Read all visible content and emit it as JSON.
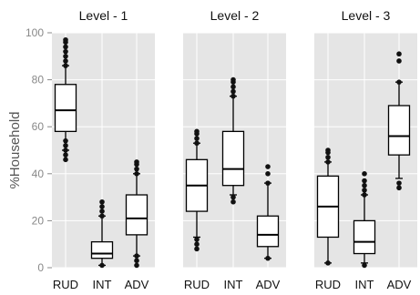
{
  "chart_data": {
    "type": "box",
    "ylabel": "%Household",
    "ylim": [
      0,
      100
    ],
    "yticks": [
      "0",
      "20",
      "40",
      "60",
      "80",
      "100"
    ],
    "grid": true,
    "panels": [
      {
        "title": "Level - 1",
        "categories": [
          "RUD",
          "INT",
          "ADV"
        ],
        "boxes": [
          {
            "q1": 58,
            "median": 67,
            "q3": 78,
            "whisker_low": 50,
            "whisker_high": 86,
            "outliers": [
              46,
              48,
              50,
              52,
              54,
              86,
              88,
              90,
              92,
              94,
              96,
              97
            ]
          },
          {
            "q1": 4,
            "median": 6,
            "q3": 11,
            "whisker_low": 1,
            "whisker_high": 22,
            "outliers": [
              1,
              22,
              24,
              26,
              28
            ]
          },
          {
            "q1": 14,
            "median": 21,
            "q3": 31,
            "whisker_low": 5,
            "whisker_high": 40,
            "outliers": [
              1,
              3,
              5,
              40,
              42,
              44,
              45
            ]
          }
        ]
      },
      {
        "title": "Level - 2",
        "categories": [
          "RUD",
          "INT",
          "ADV"
        ],
        "boxes": [
          {
            "q1": 24,
            "median": 35,
            "q3": 46,
            "whisker_low": 13,
            "whisker_high": 53,
            "outliers": [
              8,
              10,
              12,
              53,
              55,
              57,
              58
            ]
          },
          {
            "q1": 35,
            "median": 42,
            "q3": 58,
            "whisker_low": 31,
            "whisker_high": 73,
            "outliers": [
              28,
              30,
              73,
              75,
              77,
              79,
              80
            ]
          },
          {
            "q1": 9,
            "median": 14,
            "q3": 22,
            "whisker_low": 4,
            "whisker_high": 36,
            "outliers": [
              4,
              36,
              40,
              43
            ]
          }
        ]
      },
      {
        "title": "Level - 3",
        "categories": [
          "RUD",
          "INT",
          "ADV"
        ],
        "boxes": [
          {
            "q1": 13,
            "median": 26,
            "q3": 39,
            "whisker_low": 2,
            "whisker_high": 45,
            "outliers": [
              2,
              45,
              47,
              49,
              50
            ]
          },
          {
            "q1": 6,
            "median": 11,
            "q3": 20,
            "whisker_low": 2,
            "whisker_high": 31,
            "outliers": [
              1,
              31,
              33,
              35,
              37,
              40
            ]
          },
          {
            "q1": 48,
            "median": 56,
            "q3": 69,
            "whisker_low": 38,
            "whisker_high": 79,
            "outliers": [
              34,
              36,
              79,
              88,
              91
            ]
          }
        ]
      }
    ]
  }
}
